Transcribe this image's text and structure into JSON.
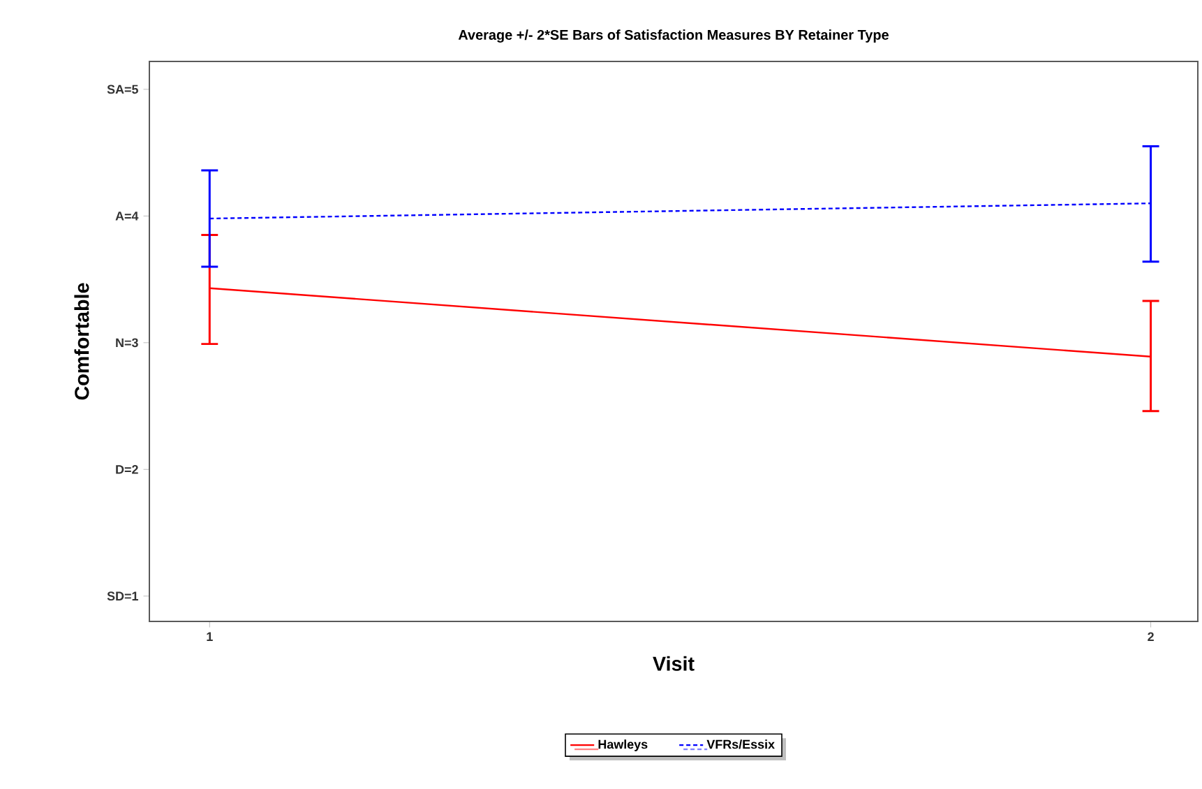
{
  "chart_data": {
    "type": "line",
    "title": "Average +/- 2*SE Bars of Satisfaction Measures BY Retainer Type",
    "xlabel": "Visit",
    "ylabel": "Comfortable",
    "x": [
      1,
      2
    ],
    "xlim": [
      0.936,
      2.05
    ],
    "xticks": [
      1,
      2
    ],
    "ylim": [
      0.8,
      5.22
    ],
    "yticks": [
      {
        "value": 1,
        "label": "SD=1"
      },
      {
        "value": 2,
        "label": "D=2"
      },
      {
        "value": 3,
        "label": "N=3"
      },
      {
        "value": 4,
        "label": "A=4"
      },
      {
        "value": 5,
        "label": "SA=5"
      }
    ],
    "series": [
      {
        "name": "Hawleys",
        "color": "#ff0000",
        "line_style": "solid",
        "values": [
          3.43,
          2.89
        ],
        "errors": [
          [
            2.99,
            3.85
          ],
          [
            2.46,
            3.33
          ]
        ]
      },
      {
        "name": "VFRs/Essix",
        "color": "#0000ff",
        "line_style": "dashed",
        "values": [
          3.98,
          4.1
        ],
        "errors": [
          [
            3.6,
            4.36
          ],
          [
            3.64,
            4.55
          ]
        ]
      }
    ],
    "marker": "none",
    "grid": false,
    "legend": "bottom"
  }
}
